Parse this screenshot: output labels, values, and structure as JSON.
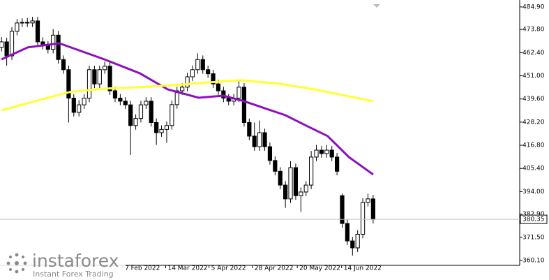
{
  "chart_data": {
    "type": "candlestick",
    "xlim": [
      -0.3,
      100.4
    ],
    "ylim": [
      357.7,
      488.3
    ],
    "yticks": [
      {
        "value": 484.9,
        "label": "484.90"
      },
      {
        "value": 473.8,
        "label": "473.80"
      },
      {
        "value": 462.4,
        "label": "462.40"
      },
      {
        "value": 451,
        "label": "451.00"
      },
      {
        "value": 439.6,
        "label": "439.60"
      },
      {
        "value": 428.2,
        "label": "428.20"
      },
      {
        "value": 416.8,
        "label": "416.80"
      },
      {
        "value": 405.4,
        "label": "405.40"
      },
      {
        "value": 394,
        "label": "394.00"
      },
      {
        "value": 382.9,
        "label": "382.90"
      },
      {
        "value": 371.5,
        "label": "371.50"
      },
      {
        "value": 360.1,
        "label": "360.10"
      }
    ],
    "xticks": [
      {
        "value": 23.5,
        "label": "7 Feb 2022"
      },
      {
        "value": 31.8,
        "label": "14 Mar 2022"
      },
      {
        "value": 40.2,
        "label": "5 Apr 2022"
      },
      {
        "value": 48.6,
        "label": "28 Apr 2022"
      },
      {
        "value": 57.3,
        "label": "20 May 2022"
      },
      {
        "value": 65.9,
        "label": "14 Jun 2022"
      }
    ],
    "up_color": "#ffffff",
    "down_color": "#000000",
    "wick_color": "#000000",
    "open": [
      465,
      467.7,
      460.8,
      472.9,
      477,
      477.3,
      477,
      478,
      467.7,
      466,
      464,
      471,
      459,
      454,
      440,
      433,
      436.7,
      440,
      454,
      447,
      454,
      455.7,
      443.6,
      440,
      438.5,
      436.7,
      426.5,
      430,
      436.7,
      438.5,
      428,
      423,
      424.6,
      426.5,
      436.8,
      443.6,
      445.4,
      450.5,
      454,
      459,
      454,
      452,
      447,
      443.6,
      440,
      438.5,
      440,
      445.4,
      428,
      421.3,
      416.1,
      423,
      416.1,
      409.3,
      404,
      397.2,
      390.4,
      405.8,
      392,
      393.8,
      397.2,
      411,
      414.4,
      412.7,
      414.4,
      411,
      392,
      378.3,
      369.7,
      366.3,
      373,
      388.7,
      390.4
    ],
    "high": [
      470,
      469.7,
      475,
      479,
      479.3,
      479.5,
      480,
      480,
      470,
      468,
      474,
      473,
      461,
      456,
      442,
      439,
      442,
      456,
      456,
      456,
      458,
      457.7,
      445.6,
      442,
      440.5,
      438.7,
      432,
      438.7,
      440.5,
      440.5,
      430,
      426.6,
      428.5,
      438.8,
      445.6,
      447.4,
      452.5,
      456,
      462,
      461,
      456,
      454,
      449,
      445.6,
      442,
      442,
      449,
      447.4,
      430,
      428,
      429,
      425,
      418.1,
      411.3,
      406,
      399.2,
      409,
      407.8,
      396,
      399.2,
      414,
      417,
      416.4,
      417,
      416.4,
      413,
      393,
      380.3,
      371.7,
      375,
      390.7,
      393,
      392.4
    ],
    "low": [
      463,
      456,
      458.8,
      470.9,
      475,
      475,
      475,
      465.7,
      464,
      462,
      462,
      457,
      452,
      428,
      431,
      431,
      434.7,
      438,
      445,
      445,
      452,
      441.6,
      438,
      436.5,
      434.7,
      412,
      424.5,
      428,
      434.7,
      426,
      417,
      421,
      418,
      424.5,
      434.8,
      441.6,
      443.4,
      448.5,
      452,
      452,
      450,
      445,
      441.6,
      438,
      436.5,
      436.5,
      438,
      426,
      419.3,
      414.1,
      414.1,
      414.1,
      407.3,
      402,
      395.2,
      386,
      388.4,
      390,
      384,
      391.8,
      395.2,
      409,
      410.7,
      410.7,
      409,
      402,
      376.3,
      367.7,
      362.5,
      364.3,
      371,
      386.7,
      378.3
    ],
    "close": [
      467.7,
      460.8,
      472.9,
      477,
      477.3,
      477,
      478,
      467.7,
      466,
      464,
      471,
      459,
      454,
      440,
      433,
      436.7,
      440,
      454,
      447,
      454,
      455.7,
      443.6,
      440,
      438.5,
      436.7,
      426.5,
      430,
      436.7,
      438.5,
      428,
      423,
      424.6,
      426.5,
      436.8,
      443.6,
      445.4,
      450.5,
      454,
      459,
      454,
      452,
      447,
      443.6,
      440,
      438.5,
      440,
      445.4,
      428,
      421.3,
      416.1,
      423,
      416.1,
      409.3,
      404,
      397.2,
      390.4,
      405.8,
      392,
      393.8,
      397.2,
      411,
      414.4,
      412.7,
      414.4,
      411,
      404,
      378.3,
      369.7,
      366.3,
      373,
      388.7,
      390.4,
      380.35
    ],
    "lines": [
      {
        "color": "#8b0fbf",
        "x": [
          0,
          5.1,
          11.2,
          20,
          26.8,
          32.2,
          38.2,
          43,
          47,
          51,
          55,
          59,
          63.2,
          67.3,
          72
        ],
        "values": [
          459.1,
          465,
          467,
          459,
          452.2,
          444.3,
          440.2,
          441.2,
          438.5,
          435,
          431.6,
          426.5,
          421.3,
          411,
          402.4
        ]
      },
      {
        "color": "#ffff33",
        "x": [
          0,
          6.5,
          13.2,
          20,
          26.8,
          33.5,
          40.3,
          46.4,
          53.8,
          60.6,
          67.3,
          72
        ],
        "values": [
          434,
          438.5,
          443,
          444.7,
          445.4,
          446.4,
          447.8,
          448.8,
          447.1,
          444.3,
          440.9,
          438.5
        ]
      }
    ],
    "last_price": 380.35
  },
  "logo": {
    "name": "instaforex",
    "tagline": "Instant Forex Trading"
  }
}
